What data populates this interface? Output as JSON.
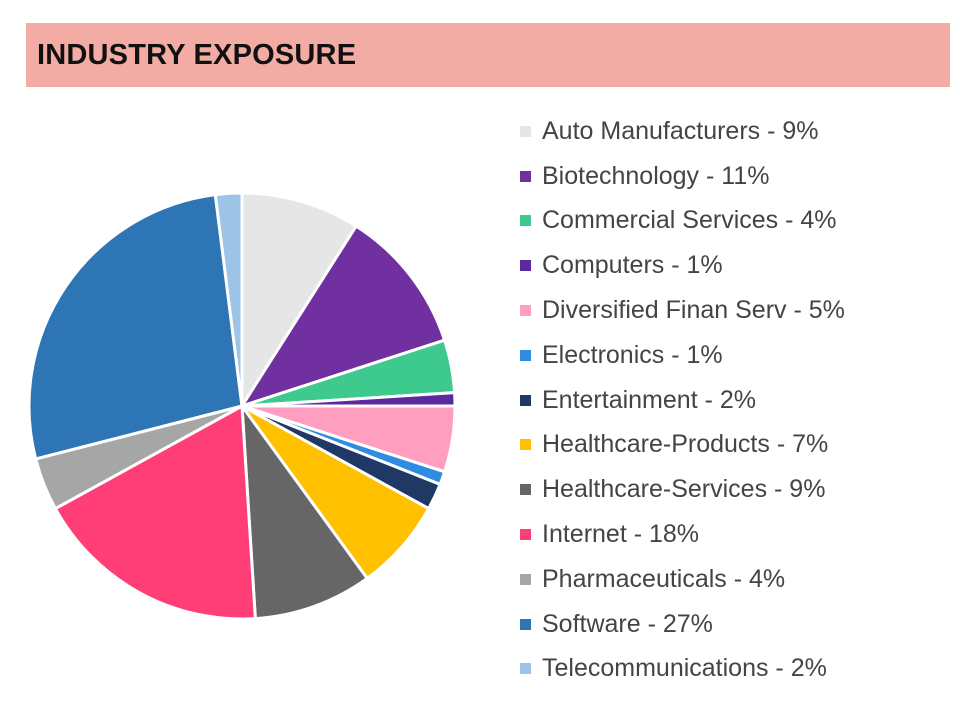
{
  "header": {
    "title": "INDUSTRY EXPOSURE",
    "background": "#f2aca4"
  },
  "chart_data": {
    "type": "pie",
    "title": "INDUSTRY EXPOSURE",
    "legend_position": "right",
    "slices": [
      {
        "label": "Auto Manufacturers - 9%",
        "name": "Auto Manufacturers",
        "value": 9,
        "color": "#e6e6e6"
      },
      {
        "label": "Biotechnology - 11%",
        "name": "Biotechnology",
        "value": 11,
        "color": "#7030a0"
      },
      {
        "label": "Commercial Services - 4%",
        "name": "Commercial Services",
        "value": 4,
        "color": "#3ec98e"
      },
      {
        "label": "Computers - 1%",
        "name": "Computers",
        "value": 1,
        "color": "#5b2a9e"
      },
      {
        "label": "Diversified Finan Serv - 5%",
        "name": "Diversified Finan Serv",
        "value": 5,
        "color": "#ff9ebe"
      },
      {
        "label": "Electronics - 1%",
        "name": "Electronics",
        "value": 1,
        "color": "#2e8de0"
      },
      {
        "label": "Entertainment - 2%",
        "name": "Entertainment",
        "value": 2,
        "color": "#1f3864"
      },
      {
        "label": "Healthcare-Products - 7%",
        "name": "Healthcare-Products",
        "value": 7,
        "color": "#ffc000"
      },
      {
        "label": "Healthcare-Services - 9%",
        "name": "Healthcare-Services",
        "value": 9,
        "color": "#666666"
      },
      {
        "label": "Internet - 18%",
        "name": "Internet",
        "value": 18,
        "color": "#ff3e78"
      },
      {
        "label": "Pharmaceuticals - 4%",
        "name": "Pharmaceuticals",
        "value": 4,
        "color": "#a6a6a6"
      },
      {
        "label": "Software - 27%",
        "name": "Software",
        "value": 27,
        "color": "#2e75b6"
      },
      {
        "label": "Telecommunications - 2%",
        "name": "Telecommunications",
        "value": 2,
        "color": "#9dc3e6"
      }
    ]
  }
}
